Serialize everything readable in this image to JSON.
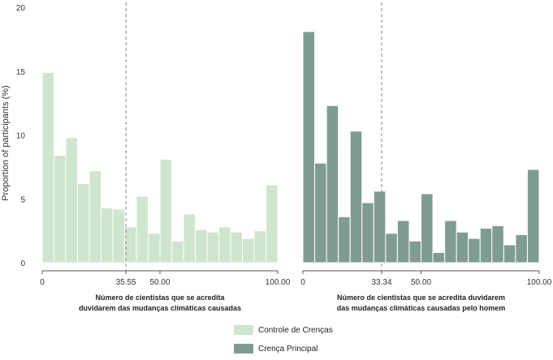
{
  "chart_data": {
    "type": "bar",
    "ylabel": "Proportion of participants (%)",
    "ylim": [
      0,
      20
    ],
    "yticks": [
      0,
      5,
      10,
      15,
      20
    ],
    "panels": [
      {
        "name": "Controle de Crenças",
        "color": "#cfe5cf",
        "xlabel_lines": [
          "Número de cientistas que se acredita",
          "duvidarem das mudanças climáticas causadas"
        ],
        "xlim": [
          0,
          100
        ],
        "xticks": [
          "0",
          "35.55",
          "50.00",
          "100.00"
        ],
        "xtick_values": [
          0,
          35.55,
          50,
          100
        ],
        "mean": 35.55,
        "bin_width": 5,
        "values": [
          14.9,
          8.4,
          9.8,
          6.2,
          7.2,
          4.3,
          4.2,
          2.8,
          5.2,
          2.3,
          8.1,
          1.7,
          3.8,
          2.6,
          2.4,
          2.8,
          2.4,
          1.9,
          2.5,
          6.1
        ]
      },
      {
        "name": "Crença Principal",
        "color": "#7f9c91",
        "xlabel_lines": [
          "Número de cientistas que se acredita duvidarem",
          "das mudanças climáticas causadas pelo homem"
        ],
        "xlim": [
          0,
          100
        ],
        "xticks": [
          "0",
          "33.34",
          "50.00",
          "100.00"
        ],
        "xtick_values": [
          0,
          33.34,
          50,
          100
        ],
        "mean": 33.34,
        "bin_width": 5,
        "values": [
          18.1,
          7.8,
          12.3,
          3.6,
          10.3,
          4.7,
          5.6,
          2.3,
          3.3,
          1.7,
          5.4,
          0.8,
          3.3,
          2.4,
          1.9,
          2.7,
          2.9,
          1.4,
          2.2,
          7.3
        ]
      }
    ],
    "legend": [
      {
        "label": "Controle de Crenças",
        "color": "#cfe5cf"
      },
      {
        "label": "Crença Principal",
        "color": "#7f9c91"
      }
    ]
  }
}
